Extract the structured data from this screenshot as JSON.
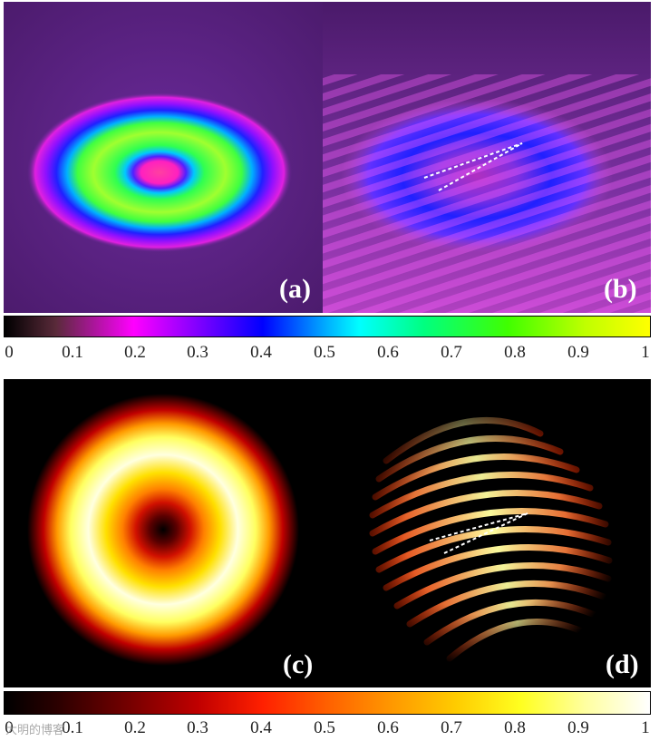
{
  "panels": {
    "a": {
      "label": "(a)"
    },
    "b": {
      "label": "(b)"
    },
    "c": {
      "label": "(c)"
    },
    "d": {
      "label": "(d)"
    }
  },
  "colorbar_top": {
    "ticks": [
      "0",
      "0.1",
      "0.2",
      "0.3",
      "0.4",
      "0.5",
      "0.6",
      "0.7",
      "0.8",
      "0.9",
      "1"
    ],
    "colormap": "hsv-like",
    "colors": [
      "#000000",
      "#5a2a3a",
      "#ff00ff",
      "#8000ff",
      "#0000ff",
      "#00b0ff",
      "#00ffff",
      "#00ff80",
      "#40ff00",
      "#c0ff00",
      "#ffff00"
    ]
  },
  "colorbar_bottom": {
    "ticks": [
      "0",
      "0.1",
      "0.2",
      "0.3",
      "0.4",
      "0.5",
      "0.6",
      "0.7",
      "0.8",
      "0.9",
      "1"
    ],
    "colormap": "hot",
    "colors": [
      "#000000",
      "#2a0000",
      "#7a0000",
      "#c00000",
      "#ff2000",
      "#ff6000",
      "#ff9800",
      "#ffcc00",
      "#ffff20",
      "#ffffa0",
      "#ffffff"
    ]
  },
  "watermark": "大明的博客"
}
